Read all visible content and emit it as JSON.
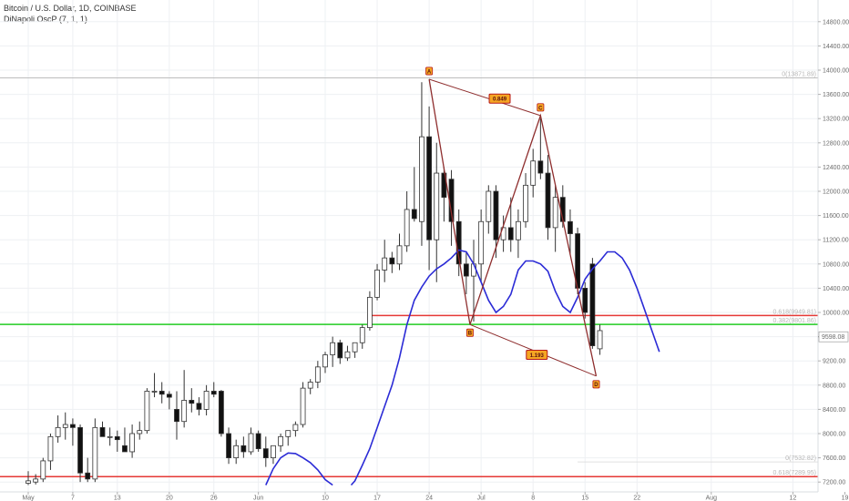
{
  "header": {
    "title": "Bitcoin / U.S. Dollar, 1D, COINBASE",
    "indicator": "DiNapoli OscP (7, 1, 1)"
  },
  "chart_data": {
    "type": "candlestick",
    "ylim": [
      7150,
      14950
    ],
    "y_ticks": [
      7200,
      7600,
      8000,
      8400,
      8800,
      9200,
      9600,
      10000,
      10400,
      10800,
      11200,
      11600,
      12000,
      12400,
      12800,
      13200,
      13600,
      14000,
      14400,
      14800
    ],
    "y_tick_labels": [
      "7200.00",
      "7600.00",
      "8000.00",
      "8400.00",
      "8800.00",
      "9200.00",
      "9600.00",
      "10000.00",
      "10400.00",
      "10800.00",
      "11200.00",
      "11600.00",
      "12000.00",
      "12400.00",
      "12800.00",
      "13200.00",
      "13600.00",
      "14000.00",
      "14400.00",
      "14800.00"
    ],
    "x_ticks": [
      {
        "label": "May",
        "d": 0
      },
      {
        "label": "7",
        "d": 6
      },
      {
        "label": "13",
        "d": 12
      },
      {
        "label": "20",
        "d": 19
      },
      {
        "label": "26",
        "d": 25
      },
      {
        "label": "Jun",
        "d": 31
      },
      {
        "label": "10",
        "d": 40
      },
      {
        "label": "17",
        "d": 47
      },
      {
        "label": "24",
        "d": 54
      },
      {
        "label": "Jul",
        "d": 61
      },
      {
        "label": "8",
        "d": 68
      },
      {
        "label": "15",
        "d": 75
      },
      {
        "label": "22",
        "d": 82
      },
      {
        "label": "Aug",
        "d": 92
      },
      {
        "label": "12",
        "d": 103
      },
      {
        "label": "19",
        "d": 110
      }
    ],
    "candles": [
      {
        "o": 7180,
        "h": 7380,
        "l": 7150,
        "c": 7220
      },
      {
        "o": 7200,
        "h": 7330,
        "l": 7160,
        "c": 7250
      },
      {
        "o": 7250,
        "h": 7600,
        "l": 7200,
        "c": 7550
      },
      {
        "o": 7550,
        "h": 8000,
        "l": 7400,
        "c": 7950
      },
      {
        "o": 7950,
        "h": 8300,
        "l": 7850,
        "c": 8100
      },
      {
        "o": 8100,
        "h": 8350,
        "l": 7900,
        "c": 8150
      },
      {
        "o": 8150,
        "h": 8250,
        "l": 7800,
        "c": 8100
      },
      {
        "o": 8100,
        "h": 8150,
        "l": 7200,
        "c": 7350
      },
      {
        "o": 7350,
        "h": 7600,
        "l": 7200,
        "c": 7250
      },
      {
        "o": 7250,
        "h": 8250,
        "l": 7200,
        "c": 8100
      },
      {
        "o": 8100,
        "h": 8200,
        "l": 7950,
        "c": 7950
      },
      {
        "o": 7950,
        "h": 8100,
        "l": 7800,
        "c": 7950
      },
      {
        "o": 7950,
        "h": 8050,
        "l": 7700,
        "c": 7900
      },
      {
        "o": 7800,
        "h": 8100,
        "l": 7700,
        "c": 7700
      },
      {
        "o": 7700,
        "h": 8150,
        "l": 7600,
        "c": 8000
      },
      {
        "o": 8000,
        "h": 8200,
        "l": 7900,
        "c": 8050
      },
      {
        "o": 8050,
        "h": 8750,
        "l": 8000,
        "c": 8700
      },
      {
        "o": 8700,
        "h": 9000,
        "l": 8600,
        "c": 8700
      },
      {
        "o": 8700,
        "h": 8850,
        "l": 8500,
        "c": 8650
      },
      {
        "o": 8650,
        "h": 8700,
        "l": 8400,
        "c": 8600
      },
      {
        "o": 8400,
        "h": 8700,
        "l": 7900,
        "c": 8200
      },
      {
        "o": 8200,
        "h": 9050,
        "l": 8100,
        "c": 8550
      },
      {
        "o": 8550,
        "h": 8750,
        "l": 8350,
        "c": 8500
      },
      {
        "o": 8500,
        "h": 8600,
        "l": 8300,
        "c": 8400
      },
      {
        "o": 8400,
        "h": 8800,
        "l": 8300,
        "c": 8700
      },
      {
        "o": 8700,
        "h": 8850,
        "l": 8600,
        "c": 8650
      },
      {
        "o": 8700,
        "h": 8720,
        "l": 7950,
        "c": 8000
      },
      {
        "o": 8000,
        "h": 8100,
        "l": 7500,
        "c": 7600
      },
      {
        "o": 7600,
        "h": 7900,
        "l": 7500,
        "c": 7800
      },
      {
        "o": 7800,
        "h": 7950,
        "l": 7600,
        "c": 7700
      },
      {
        "o": 7700,
        "h": 8100,
        "l": 7650,
        "c": 8000
      },
      {
        "o": 8000,
        "h": 8050,
        "l": 7700,
        "c": 7750
      },
      {
        "o": 7750,
        "h": 7950,
        "l": 7450,
        "c": 7600
      },
      {
        "o": 7600,
        "h": 7800,
        "l": 7500,
        "c": 7800
      },
      {
        "o": 7800,
        "h": 8000,
        "l": 7700,
        "c": 7950
      },
      {
        "o": 7950,
        "h": 8050,
        "l": 7800,
        "c": 8050
      },
      {
        "o": 8050,
        "h": 8200,
        "l": 7950,
        "c": 8150
      },
      {
        "o": 8150,
        "h": 8850,
        "l": 8100,
        "c": 8750
      },
      {
        "o": 8750,
        "h": 8900,
        "l": 8650,
        "c": 8850
      },
      {
        "o": 8850,
        "h": 9200,
        "l": 8750,
        "c": 9100
      },
      {
        "o": 9100,
        "h": 9350,
        "l": 9000,
        "c": 9300
      },
      {
        "o": 9300,
        "h": 9600,
        "l": 9100,
        "c": 9500
      },
      {
        "o": 9500,
        "h": 9550,
        "l": 9150,
        "c": 9250
      },
      {
        "o": 9250,
        "h": 9450,
        "l": 9200,
        "c": 9350
      },
      {
        "o": 9350,
        "h": 9500,
        "l": 9250,
        "c": 9500
      },
      {
        "o": 9500,
        "h": 9800,
        "l": 9400,
        "c": 9750
      },
      {
        "o": 9750,
        "h": 10350,
        "l": 9700,
        "c": 10250
      },
      {
        "o": 10250,
        "h": 10800,
        "l": 10200,
        "c": 10700
      },
      {
        "o": 10700,
        "h": 11200,
        "l": 10500,
        "c": 10900
      },
      {
        "o": 10900,
        "h": 11000,
        "l": 10650,
        "c": 10800
      },
      {
        "o": 10800,
        "h": 11300,
        "l": 10700,
        "c": 11100
      },
      {
        "o": 11100,
        "h": 12000,
        "l": 11000,
        "c": 11700
      },
      {
        "o": 11700,
        "h": 12400,
        "l": 11500,
        "c": 11550
      },
      {
        "o": 11500,
        "h": 13800,
        "l": 11100,
        "c": 12900
      },
      {
        "o": 12900,
        "h": 13400,
        "l": 10700,
        "c": 11200
      },
      {
        "o": 11200,
        "h": 12800,
        "l": 10500,
        "c": 12300
      },
      {
        "o": 12300,
        "h": 12400,
        "l": 11500,
        "c": 11900
      },
      {
        "o": 12200,
        "h": 12350,
        "l": 11100,
        "c": 11500
      },
      {
        "o": 11500,
        "h": 11700,
        "l": 10600,
        "c": 10800
      },
      {
        "o": 10800,
        "h": 11000,
        "l": 10300,
        "c": 10600
      },
      {
        "o": 10600,
        "h": 11200,
        "l": 9850,
        "c": 10800
      },
      {
        "o": 10800,
        "h": 11700,
        "l": 10500,
        "c": 11500
      },
      {
        "o": 11500,
        "h": 12100,
        "l": 11300,
        "c": 12000
      },
      {
        "o": 12000,
        "h": 12100,
        "l": 10900,
        "c": 11200
      },
      {
        "o": 11200,
        "h": 11600,
        "l": 11000,
        "c": 11400
      },
      {
        "o": 11400,
        "h": 11900,
        "l": 11000,
        "c": 11200
      },
      {
        "o": 11200,
        "h": 11700,
        "l": 10900,
        "c": 11500
      },
      {
        "o": 11500,
        "h": 12300,
        "l": 11400,
        "c": 12100
      },
      {
        "o": 12100,
        "h": 12700,
        "l": 11900,
        "c": 12500
      },
      {
        "o": 12500,
        "h": 13200,
        "l": 12200,
        "c": 12300
      },
      {
        "o": 12300,
        "h": 12600,
        "l": 11200,
        "c": 11400
      },
      {
        "o": 11400,
        "h": 12100,
        "l": 11000,
        "c": 11900
      },
      {
        "o": 11900,
        "h": 12100,
        "l": 11400,
        "c": 11500
      },
      {
        "o": 11500,
        "h": 11700,
        "l": 10950,
        "c": 11300
      },
      {
        "o": 11300,
        "h": 11400,
        "l": 10300,
        "c": 10400
      },
      {
        "o": 10400,
        "h": 10500,
        "l": 9900,
        "c": 10000
      },
      {
        "o": 10800,
        "h": 10900,
        "l": 9400,
        "c": 9450
      },
      {
        "o": 9400,
        "h": 9800,
        "l": 9300,
        "c": 9700
      }
    ],
    "oscillator": [
      [
        32,
        7150
      ],
      [
        33,
        7420
      ],
      [
        34,
        7600
      ],
      [
        35,
        7680
      ],
      [
        36,
        7670
      ],
      [
        37,
        7600
      ],
      [
        38,
        7520
      ],
      [
        39,
        7400
      ],
      [
        40,
        7240
      ],
      [
        41,
        7150
      ],
      [
        43.5,
        7150
      ],
      [
        44,
        7220
      ],
      [
        45,
        7480
      ],
      [
        46,
        7750
      ],
      [
        47,
        8100
      ],
      [
        48,
        8450
      ],
      [
        49,
        8800
      ],
      [
        50,
        9250
      ],
      [
        51,
        9800
      ],
      [
        52,
        10200
      ],
      [
        53,
        10420
      ],
      [
        54,
        10600
      ],
      [
        55,
        10720
      ],
      [
        56,
        10800
      ],
      [
        57,
        10900
      ],
      [
        58,
        11030
      ],
      [
        59,
        11000
      ],
      [
        60,
        10800
      ],
      [
        61,
        10500
      ],
      [
        62,
        10200
      ],
      [
        63,
        10000
      ],
      [
        64,
        10100
      ],
      [
        65,
        10300
      ],
      [
        66,
        10700
      ],
      [
        67,
        10850
      ],
      [
        68,
        10850
      ],
      [
        69,
        10800
      ],
      [
        70,
        10680
      ],
      [
        71,
        10350
      ],
      [
        72,
        10100
      ],
      [
        73,
        10000
      ],
      [
        74,
        10250
      ],
      [
        75,
        10550
      ],
      [
        76,
        10720
      ],
      [
        77,
        10850
      ],
      [
        78,
        11000
      ],
      [
        79,
        11000
      ],
      [
        80,
        10900
      ],
      [
        81,
        10700
      ],
      [
        82,
        10400
      ],
      [
        83,
        10050
      ],
      [
        84,
        9700
      ],
      [
        85,
        9350
      ]
    ],
    "hlines": [
      {
        "y": 13871.89,
        "color": "#bdbdbd",
        "label": "0(13871.89)",
        "x0d": -1
      },
      {
        "y": 9949.81,
        "color": "#e53935",
        "label": "0.618(9949.81)",
        "x0d": 46
      },
      {
        "y": 9801.86,
        "color": "#22cc22",
        "label": "0.382(9801.86)",
        "x0d": -1
      },
      {
        "y": 7289.95,
        "color": "#e53935",
        "label": "0.618(7289.95)",
        "x0d": -1
      },
      {
        "y": 7532.82,
        "color": "#e0e0e0",
        "label": "0(7532.82)",
        "x0d": 74
      }
    ],
    "pattern": {
      "points": [
        {
          "label": "A",
          "d": 54,
          "y": 13850
        },
        {
          "label": "B",
          "d": 59.5,
          "y": 9800
        },
        {
          "label": "C",
          "d": 69,
          "y": 13250
        },
        {
          "label": "D",
          "d": 76.5,
          "y": 8950
        }
      ],
      "ratios": [
        {
          "text": "0.849",
          "d": 63.5,
          "y": 13530
        },
        {
          "text": "1.193",
          "d": 68.5,
          "y": 9300
        }
      ]
    },
    "price_label": "9598.08",
    "price_value": 9598.08
  }
}
